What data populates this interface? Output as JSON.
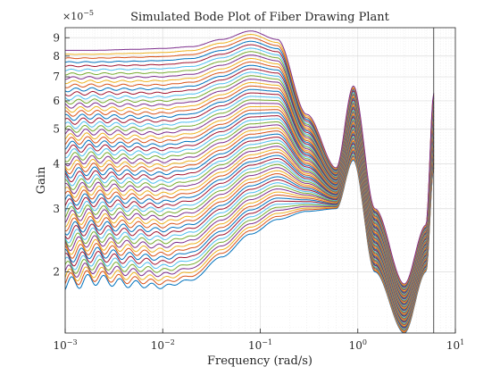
{
  "chart_data": {
    "type": "line",
    "title": "Simulated Bode Plot of Fiber Drawing Plant",
    "xlabel": "Frequency (rad/s)",
    "ylabel": "Gain",
    "xscale": "log",
    "yscale": "log",
    "xlim": [
      0.001,
      10
    ],
    "ylim": [
      1.35e-05,
      9.6e-05
    ],
    "exponent_label": "×10",
    "exponent_power": "−5",
    "x_ticks": [
      {
        "value": 0.001,
        "base": "10",
        "exp": "−3"
      },
      {
        "value": 0.01,
        "base": "10",
        "exp": "−2"
      },
      {
        "value": 0.1,
        "base": "10",
        "exp": "−1"
      },
      {
        "value": 1,
        "base": "10",
        "exp": "0"
      },
      {
        "value": 10,
        "base": "10",
        "exp": "1"
      }
    ],
    "y_ticks": [
      {
        "value": 2e-05,
        "label": "2"
      },
      {
        "value": 3e-05,
        "label": "3"
      },
      {
        "value": 4e-05,
        "label": "4"
      },
      {
        "value": 5e-05,
        "label": "5"
      },
      {
        "value": 6e-05,
        "label": "6"
      },
      {
        "value": 7e-05,
        "label": "7"
      },
      {
        "value": 8e-05,
        "label": "8"
      },
      {
        "value": 9e-05,
        "label": "9"
      }
    ],
    "grid": true,
    "vertical_marker_x": 6.0,
    "series_count": 60,
    "top_series": {
      "x": [
        0.001,
        0.002,
        0.005,
        0.01,
        0.02,
        0.04,
        0.08,
        0.15,
        0.3,
        0.6,
        0.9,
        1.5,
        3.0,
        5.0,
        6.0
      ],
      "y": [
        8.3e-05,
        8.3e-05,
        8.35e-05,
        8.4e-05,
        8.5e-05,
        8.9e-05,
        9.4e-05,
        8.9e-05,
        5.5e-05,
        3.9e-05,
        6.6e-05,
        3e-05,
        1.85e-05,
        2.7e-05,
        6.3e-05
      ]
    },
    "bottom_series": {
      "x": [
        0.001,
        0.002,
        0.005,
        0.01,
        0.02,
        0.04,
        0.08,
        0.15,
        0.3,
        0.6,
        0.9,
        1.5,
        3.0,
        5.0,
        6.0
      ],
      "y": [
        1.85e-05,
        1.9e-05,
        1.85e-05,
        1.82e-05,
        1.9e-05,
        2.2e-05,
        2.55e-05,
        2.8e-05,
        2.95e-05,
        3e-05,
        4.1e-05,
        2e-05,
        1.35e-05,
        2e-05,
        3.9e-05
      ]
    },
    "colors": [
      "#0072bd",
      "#d95319",
      "#edb120",
      "#7e2f8e",
      "#77ac30",
      "#4dbeee",
      "#a2142f"
    ]
  }
}
